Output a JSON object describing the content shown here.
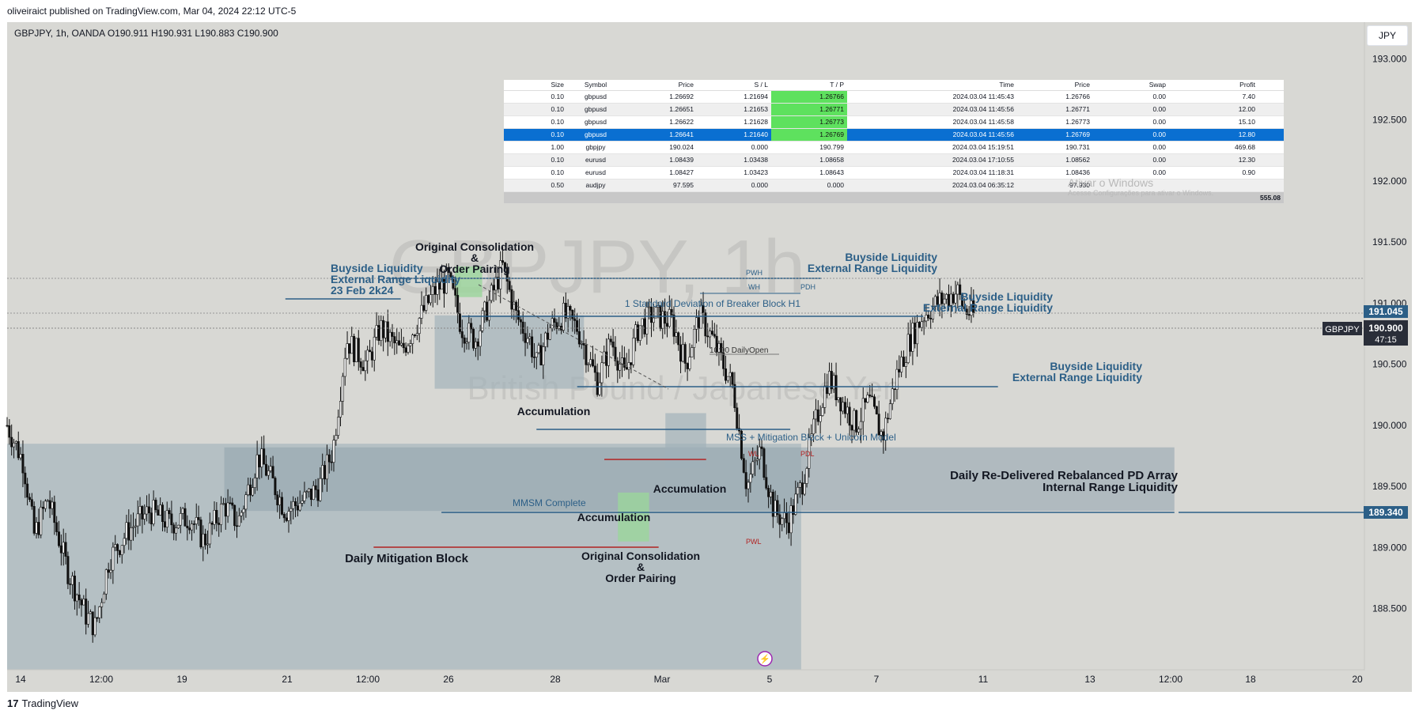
{
  "header": {
    "published": "oliveiraict published on TradingView.com, Mar 04, 2024 22:12 UTC-5",
    "ohlc": "GBPJPY, 1h, OANDA  O190.911  H190.931  L190.883  C190.900",
    "currency": "JPY"
  },
  "footer": {
    "brand": "TradingView"
  },
  "watermark": {
    "title": "GBPJPY, 1h",
    "subtitle": "British Pound / Japanese Yen"
  },
  "price_axis": {
    "ticks": [
      "193.000",
      "192.500",
      "192.000",
      "191.500",
      "191.000",
      "190.500",
      "190.000",
      "189.500",
      "189.000",
      "188.500"
    ],
    "tag_high": "191.045",
    "tag_symbol": "GBPJPY",
    "tag_price": "190.900",
    "tag_countdown": "47:15",
    "tag_low": "189.340"
  },
  "time_axis": {
    "ticks": [
      "14",
      "12:00",
      "19",
      "21",
      "12:00",
      "26",
      "28",
      "Mar",
      "5",
      "7",
      "11",
      "13",
      "12:00",
      "18",
      "20"
    ]
  },
  "annotations": {
    "orig_consol_top": [
      "Original Consolidation",
      "&",
      "Order Pairing"
    ],
    "bsl_left": [
      "Buyside Liquidity",
      "External Range Liquidity",
      "23 Feb 2k24"
    ],
    "bsl_top": [
      "Buyside Liquidity",
      "External Range Liquidity"
    ],
    "bsl_mid": [
      "Buyside Liquidity",
      "External Range Liquidity"
    ],
    "bsl_low": [
      "Buyside Liquidity",
      "External Range Liquidity"
    ],
    "std_dev": "1 Standard Deviation of Breaker Block H1",
    "pwh": "PWH",
    "wh": "WH",
    "pdh": "PDH",
    "wl": "WL",
    "pdl": "PDL",
    "pwl": "PWL",
    "daily_open": "10:00 DailyOpen",
    "accum_1": "Accumulation",
    "accum_2": "Accumulation",
    "accum_3": "Accumulation",
    "mss": "MSS + Mitigation Block + Unicorn Model",
    "mmsm": "MMSM Complete",
    "daily_redelivered": [
      "Daily Re-Delivered Rebalanced PD Array",
      "Internal Range Liquidity"
    ],
    "daily_mitigation": "Daily Mitigation Block",
    "orig_consol_bottom": [
      "Original Consolidation",
      "&",
      "Order Pairing"
    ],
    "activate_windows": [
      "Ativar o Windows",
      "Acesse Configurações para ativar o Windows."
    ]
  },
  "positions_table": {
    "headers": [
      "Size",
      "Symbol",
      "Price",
      "S / L",
      "T / P",
      "Time",
      "Price",
      "Swap",
      "Profit"
    ],
    "rows": [
      [
        "0.10",
        "gbpusd",
        "1.26692",
        "1.21694",
        "1.26766",
        "2024.03.04 11:45:43",
        "1.26766",
        "0.00",
        "7.40"
      ],
      [
        "0.10",
        "gbpusd",
        "1.26651",
        "1.21653",
        "1.26771",
        "2024.03.04 11:45:56",
        "1.26771",
        "0.00",
        "12.00"
      ],
      [
        "0.10",
        "gbpusd",
        "1.26622",
        "1.21628",
        "1.26773",
        "2024.03.04 11:45:58",
        "1.26773",
        "0.00",
        "15.10"
      ],
      [
        "0.10",
        "gbpusd",
        "1.26641",
        "1.21640",
        "1.26769",
        "2024.03.04 11:45:56",
        "1.26769",
        "0.00",
        "12.80"
      ],
      [
        "1.00",
        "gbpjpy",
        "190.024",
        "0.000",
        "190.799",
        "2024.03.04 15:19:51",
        "190.731",
        "0.00",
        "469.68"
      ],
      [
        "0.10",
        "eurusd",
        "1.08439",
        "1.03438",
        "1.08658",
        "2024.03.04 17:10:55",
        "1.08562",
        "0.00",
        "12.30"
      ],
      [
        "0.10",
        "eurusd",
        "1.08427",
        "1.03423",
        "1.08643",
        "2024.03.04 11:18:31",
        "1.08436",
        "0.00",
        "0.90"
      ],
      [
        "0.50",
        "audjpy",
        "97.595",
        "0.000",
        "0.000",
        "2024.03.04 06:35:12",
        "97.930",
        "",
        ""
      ]
    ],
    "total": "555.08",
    "selected_row": 3,
    "tp_highlight_rows": [
      0,
      1,
      2,
      3
    ]
  },
  "chart_data": {
    "type": "candlestick",
    "symbol": "GBPJPY",
    "interval": "1h",
    "ylim": [
      188.0,
      193.3
    ],
    "price_path": [
      [
        0,
        190.0
      ],
      [
        0.012,
        189.7
      ],
      [
        0.02,
        189.1
      ],
      [
        0.03,
        189.4
      ],
      [
        0.045,
        188.8
      ],
      [
        0.058,
        188.45
      ],
      [
        0.065,
        188.35
      ],
      [
        0.075,
        188.9
      ],
      [
        0.09,
        189.15
      ],
      [
        0.105,
        189.3
      ],
      [
        0.12,
        189.2
      ],
      [
        0.135,
        189.25
      ],
      [
        0.145,
        189.05
      ],
      [
        0.16,
        189.35
      ],
      [
        0.17,
        189.2
      ],
      [
        0.185,
        189.75
      ],
      [
        0.195,
        189.55
      ],
      [
        0.205,
        189.3
      ],
      [
        0.22,
        189.4
      ],
      [
        0.23,
        189.5
      ],
      [
        0.24,
        189.8
      ],
      [
        0.25,
        190.7
      ],
      [
        0.265,
        190.5
      ],
      [
        0.275,
        190.8
      ],
      [
        0.29,
        190.6
      ],
      [
        0.3,
        190.8
      ],
      [
        0.315,
        191.1
      ],
      [
        0.325,
        191.2
      ],
      [
        0.335,
        190.8
      ],
      [
        0.345,
        190.7
      ],
      [
        0.355,
        191.0
      ],
      [
        0.365,
        191.3
      ],
      [
        0.375,
        190.9
      ],
      [
        0.385,
        190.7
      ],
      [
        0.39,
        190.5
      ],
      [
        0.4,
        190.8
      ],
      [
        0.41,
        190.9
      ],
      [
        0.42,
        190.8
      ],
      [
        0.435,
        190.35
      ],
      [
        0.445,
        190.7
      ],
      [
        0.455,
        190.4
      ],
      [
        0.465,
        190.8
      ],
      [
        0.475,
        190.9
      ],
      [
        0.49,
        190.85
      ],
      [
        0.5,
        190.5
      ],
      [
        0.51,
        190.9
      ],
      [
        0.52,
        190.7
      ],
      [
        0.535,
        190.3
      ],
      [
        0.54,
        189.9
      ],
      [
        0.545,
        189.5
      ],
      [
        0.555,
        189.8
      ],
      [
        0.565,
        189.3
      ],
      [
        0.575,
        189.2
      ],
      [
        0.585,
        189.5
      ],
      [
        0.595,
        190.0
      ],
      [
        0.605,
        190.4
      ],
      [
        0.615,
        190.2
      ],
      [
        0.625,
        190.0
      ],
      [
        0.635,
        190.2
      ],
      [
        0.645,
        189.9
      ],
      [
        0.655,
        190.4
      ],
      [
        0.665,
        190.7
      ],
      [
        0.675,
        190.9
      ],
      [
        0.685,
        191.0
      ],
      [
        0.7,
        191.1
      ],
      [
        0.705,
        190.95
      ],
      [
        0.712,
        190.9
      ]
    ],
    "zones": [
      {
        "label": "Daily Mitigation Block",
        "from": 0.0,
        "to": 0.585,
        "low": 188.0,
        "high": 189.85
      },
      {
        "label": "Daily Re-Delivered Rebalanced PD Array",
        "from": 0.16,
        "to": 0.86,
        "low": 189.3,
        "high": 189.82
      },
      {
        "label": "Accumulation",
        "from": 0.315,
        "to": 0.425,
        "low": 190.3,
        "high": 190.9
      },
      {
        "label": "Accumulation",
        "from": 0.485,
        "to": 0.515,
        "low": 189.65,
        "high": 190.1
      },
      {
        "label": "Original Consolidation",
        "from": 0.45,
        "to": 0.473,
        "low": 189.05,
        "high": 189.45
      },
      {
        "label": "Original Consolidation",
        "from": 0.33,
        "to": 0.35,
        "low": 191.05,
        "high": 191.3
      }
    ],
    "levels": [
      {
        "label": "PWH",
        "price": 191.35,
        "color": "#2c5f87"
      },
      {
        "label": "Buyside Liquidity 23 Feb",
        "price": 191.15,
        "color": "#2c5f87"
      },
      {
        "label": "Buyside Liquidity top",
        "price": 191.05,
        "color": "#2c5f87"
      },
      {
        "label": "Buyside Liquidity low",
        "price": 190.4,
        "color": "#2c5f87"
      },
      {
        "label": "MSS",
        "price": 190.05,
        "color": "#2c5f87"
      },
      {
        "label": "WL",
        "price": 189.8,
        "color": "#b22222"
      },
      {
        "label": "MMSM Complete",
        "price": 189.34,
        "color": "#2c5f87"
      },
      {
        "label": "PWL",
        "price": 189.05,
        "color": "#b22222"
      }
    ]
  }
}
